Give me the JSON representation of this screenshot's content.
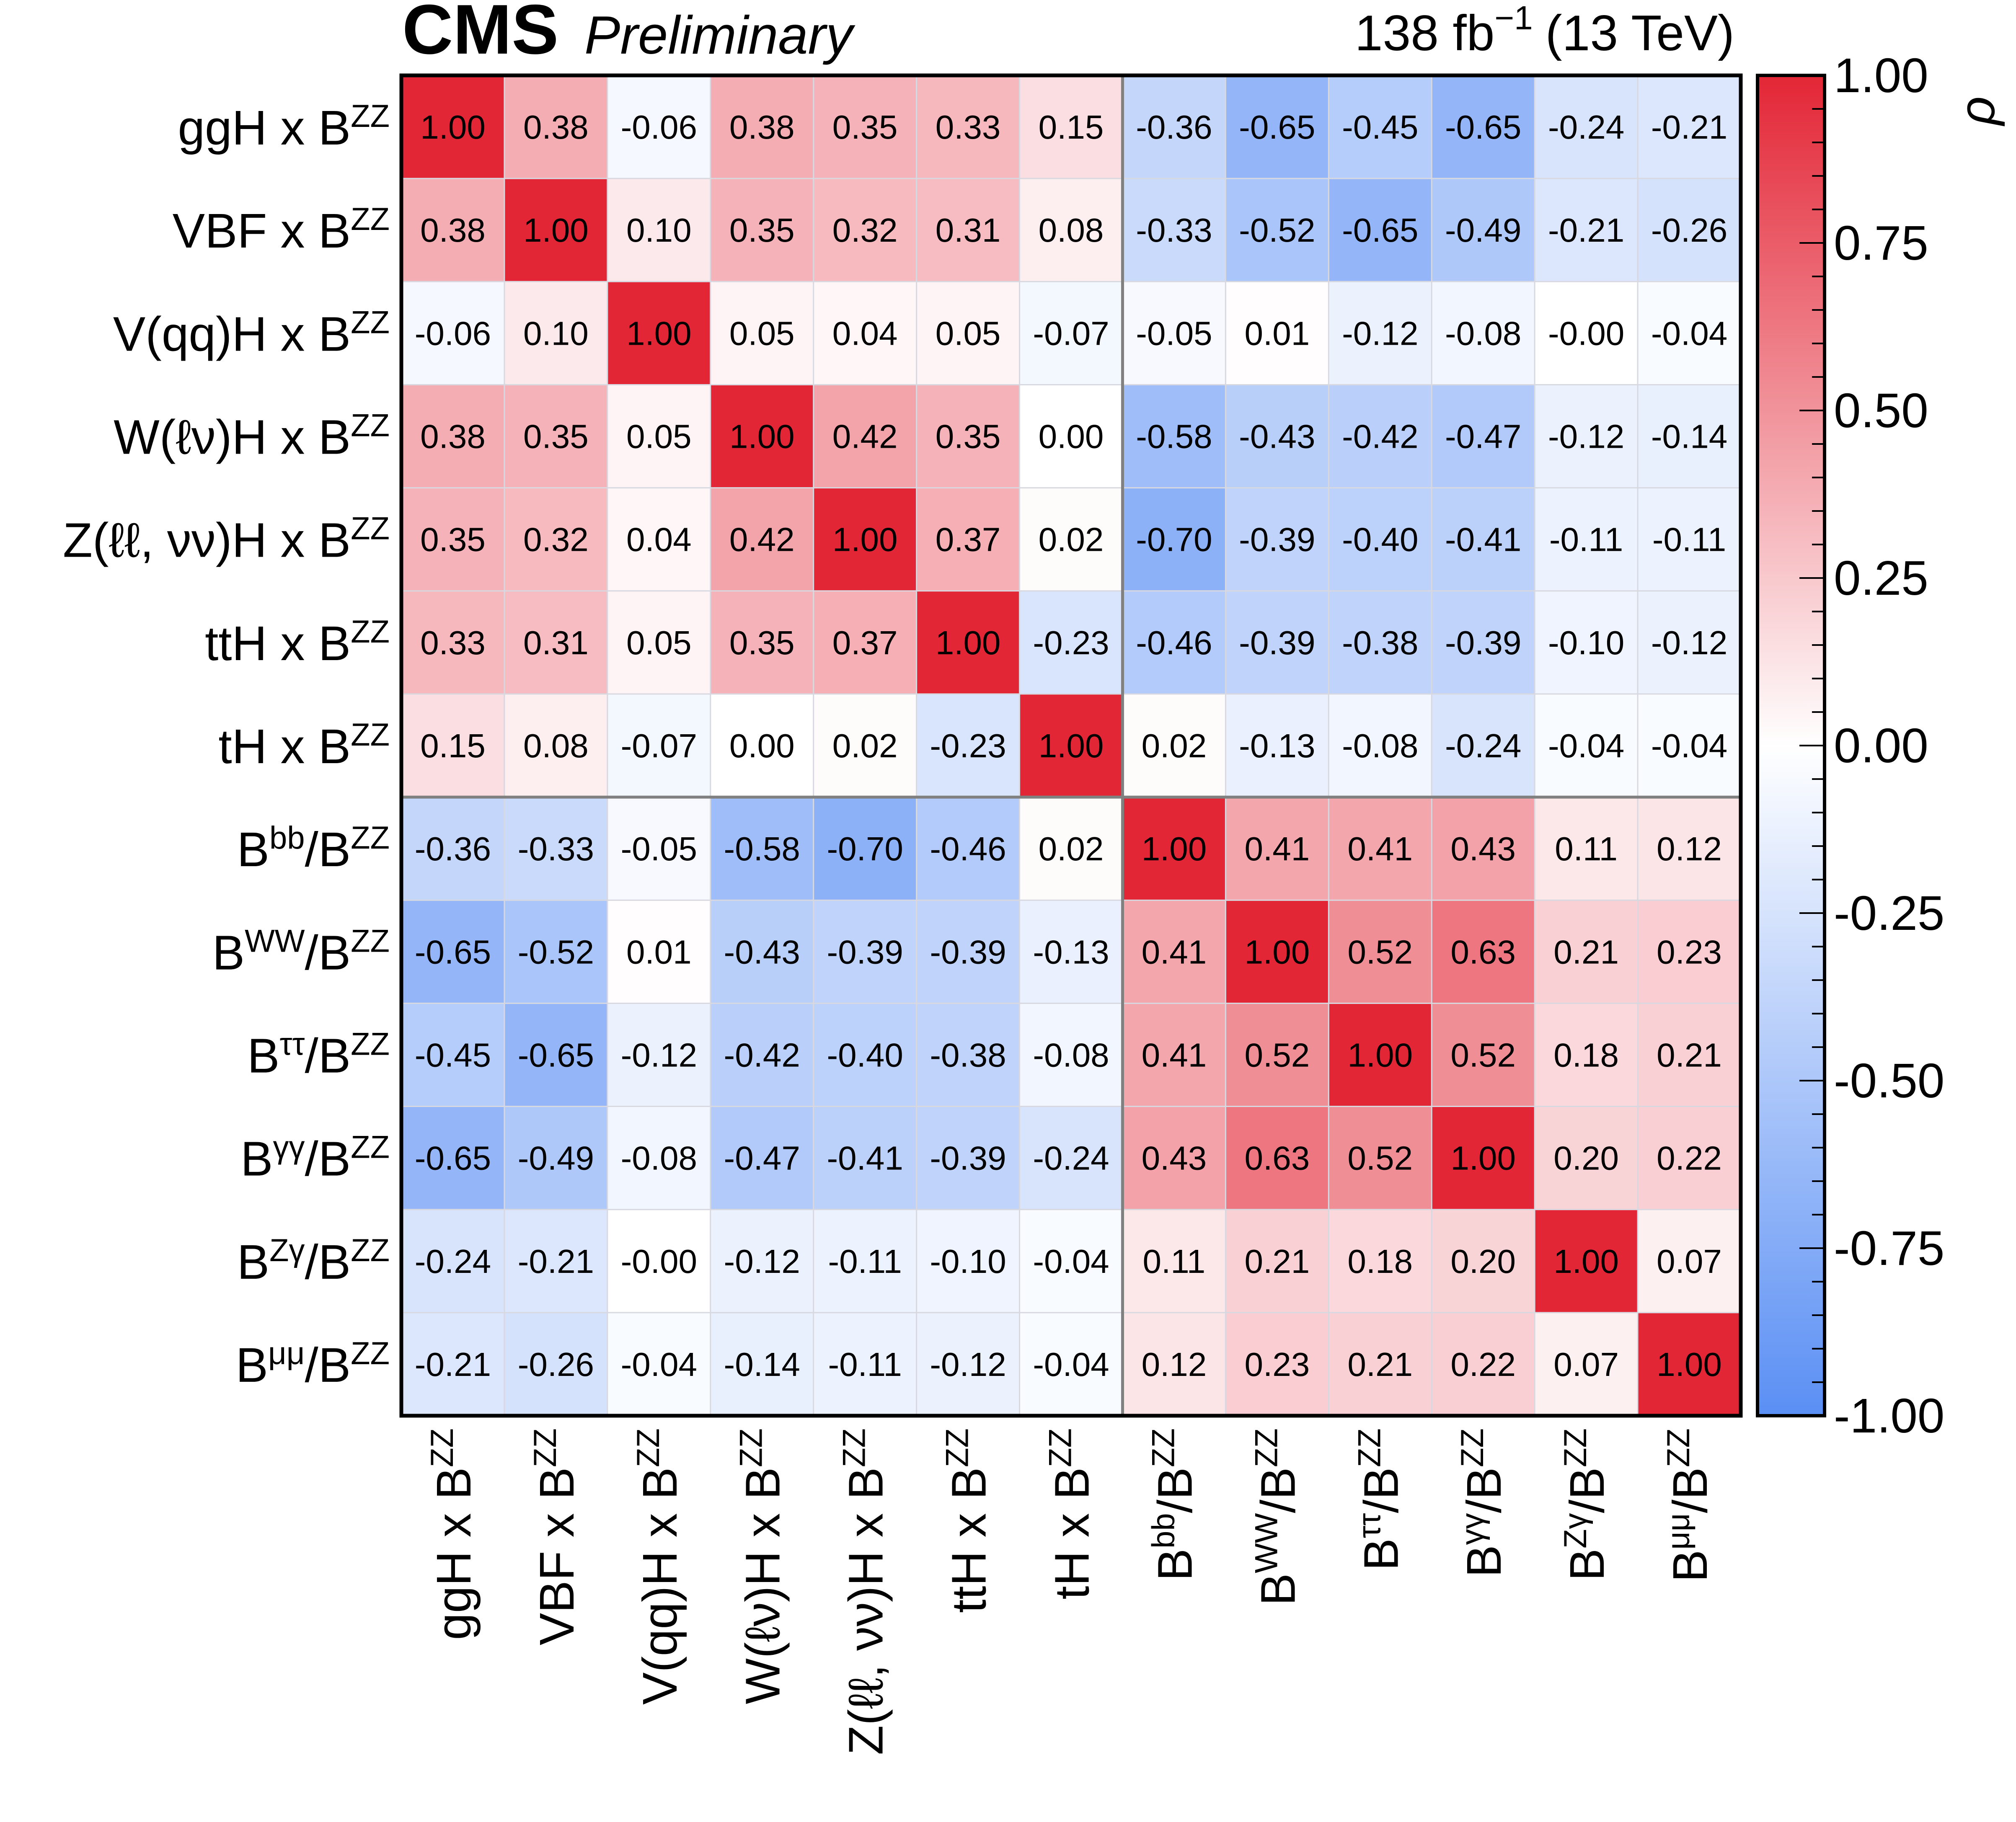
{
  "header": {
    "experiment": "CMS",
    "status": "Preliminary",
    "lumi": "138 fb",
    "lumi_exp": "−1",
    "energy": "(13 TeV)"
  },
  "colors": {
    "positive": "#e32636",
    "neutral": "#ffffff",
    "negative": "#5a8ff4",
    "frame": "#000000",
    "separator": "#808080"
  },
  "chart_data": {
    "type": "heatmap",
    "labels": [
      {
        "base": "ggH x B",
        "sup": "ZZ",
        "tail": ""
      },
      {
        "base": "VBF x B",
        "sup": "ZZ",
        "tail": ""
      },
      {
        "base": "V(qq)H x B",
        "sup": "ZZ",
        "tail": ""
      },
      {
        "base": "W(ℓν)H x B",
        "sup": "ZZ",
        "tail": ""
      },
      {
        "base": "Z(ℓℓ, νν)H x B",
        "sup": "ZZ",
        "tail": ""
      },
      {
        "base": "ttH x B",
        "sup": "ZZ",
        "tail": ""
      },
      {
        "base": "tH x B",
        "sup": "ZZ",
        "tail": ""
      },
      {
        "base": "B",
        "sup": "bb",
        "tail": "/B",
        "sup2": "ZZ"
      },
      {
        "base": "B",
        "sup": "WW",
        "tail": "/B",
        "sup2": "ZZ"
      },
      {
        "base": "B",
        "sup": "ττ",
        "tail": "/B",
        "sup2": "ZZ"
      },
      {
        "base": "B",
        "sup": "γγ",
        "tail": "/B",
        "sup2": "ZZ"
      },
      {
        "base": "B",
        "sup": "Zγ",
        "tail": "/B",
        "sup2": "ZZ"
      },
      {
        "base": "B",
        "sup": "μμ",
        "tail": "/B",
        "sup2": "ZZ"
      }
    ],
    "matrix": [
      [
        "1.00",
        "0.38",
        "-0.06",
        "0.38",
        "0.35",
        "0.33",
        "0.15",
        "-0.36",
        "-0.65",
        "-0.45",
        "-0.65",
        "-0.24",
        "-0.21"
      ],
      [
        "0.38",
        "1.00",
        "0.10",
        "0.35",
        "0.32",
        "0.31",
        "0.08",
        "-0.33",
        "-0.52",
        "-0.65",
        "-0.49",
        "-0.21",
        "-0.26"
      ],
      [
        "-0.06",
        "0.10",
        "1.00",
        "0.05",
        "0.04",
        "0.05",
        "-0.07",
        "-0.05",
        "0.01",
        "-0.12",
        "-0.08",
        "-0.00",
        "-0.04"
      ],
      [
        "0.38",
        "0.35",
        "0.05",
        "1.00",
        "0.42",
        "0.35",
        "0.00",
        "-0.58",
        "-0.43",
        "-0.42",
        "-0.47",
        "-0.12",
        "-0.14"
      ],
      [
        "0.35",
        "0.32",
        "0.04",
        "0.42",
        "1.00",
        "0.37",
        "0.02",
        "-0.70",
        "-0.39",
        "-0.40",
        "-0.41",
        "-0.11",
        "-0.11"
      ],
      [
        "0.33",
        "0.31",
        "0.05",
        "0.35",
        "0.37",
        "1.00",
        "-0.23",
        "-0.46",
        "-0.39",
        "-0.38",
        "-0.39",
        "-0.10",
        "-0.12"
      ],
      [
        "0.15",
        "0.08",
        "-0.07",
        "0.00",
        "0.02",
        "-0.23",
        "1.00",
        "0.02",
        "-0.13",
        "-0.08",
        "-0.24",
        "-0.04",
        "-0.04"
      ],
      [
        "-0.36",
        "-0.33",
        "-0.05",
        "-0.58",
        "-0.70",
        "-0.46",
        "0.02",
        "1.00",
        "0.41",
        "0.41",
        "0.43",
        "0.11",
        "0.12"
      ],
      [
        "-0.65",
        "-0.52",
        "0.01",
        "-0.43",
        "-0.39",
        "-0.39",
        "-0.13",
        "0.41",
        "1.00",
        "0.52",
        "0.63",
        "0.21",
        "0.23"
      ],
      [
        "-0.45",
        "-0.65",
        "-0.12",
        "-0.42",
        "-0.40",
        "-0.38",
        "-0.08",
        "0.41",
        "0.52",
        "1.00",
        "0.52",
        "0.18",
        "0.21"
      ],
      [
        "-0.65",
        "-0.49",
        "-0.08",
        "-0.47",
        "-0.41",
        "-0.39",
        "-0.24",
        "0.43",
        "0.63",
        "0.52",
        "1.00",
        "0.20",
        "0.22"
      ],
      [
        "-0.24",
        "-0.21",
        "-0.00",
        "-0.12",
        "-0.11",
        "-0.10",
        "-0.04",
        "0.11",
        "0.21",
        "0.18",
        "0.20",
        "1.00",
        "0.07"
      ],
      [
        "-0.21",
        "-0.26",
        "-0.04",
        "-0.14",
        "-0.11",
        "-0.12",
        "-0.04",
        "0.12",
        "0.23",
        "0.21",
        "0.22",
        "0.07",
        "1.00"
      ]
    ],
    "block_split_after": 7,
    "colorbar": {
      "label": "ρ",
      "range": [
        -1,
        1
      ],
      "ticks": [
        "1.00",
        "0.75",
        "0.50",
        "0.25",
        "0.00",
        "-0.25",
        "-0.50",
        "-0.75",
        "-1.00"
      ]
    }
  }
}
